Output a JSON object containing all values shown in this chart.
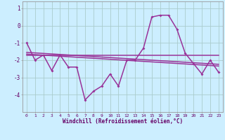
{
  "xlabel": "Windchill (Refroidissement éolien,°C)",
  "bg_color": "#cceeff",
  "line_color": "#993399",
  "grid_color": "#aacccc",
  "hours": [
    0,
    1,
    2,
    3,
    4,
    5,
    6,
    7,
    8,
    9,
    10,
    11,
    12,
    13,
    14,
    15,
    16,
    17,
    18,
    19,
    20,
    21,
    22,
    23
  ],
  "windchill": [
    -1.0,
    -2.0,
    -1.7,
    -2.6,
    -1.7,
    -2.4,
    -2.4,
    -4.3,
    -3.8,
    -3.5,
    -2.8,
    -3.5,
    -2.0,
    -2.0,
    -1.3,
    0.5,
    0.6,
    0.6,
    -0.2,
    -1.6,
    -2.2,
    -2.8,
    -2.0,
    -2.7
  ],
  "line_flat": [
    -1.7,
    -1.7,
    -1.7,
    -1.7,
    -1.7,
    -1.7,
    -1.7,
    -1.7,
    -1.7,
    -1.7,
    -1.7,
    -1.7,
    -1.7,
    -1.7,
    -1.7,
    -1.7,
    -1.7,
    -1.7,
    -1.7,
    -1.7,
    -1.7,
    -1.7,
    -1.7,
    -1.7
  ],
  "line_trend1": [
    -1.55,
    -1.58,
    -1.61,
    -1.64,
    -1.67,
    -1.7,
    -1.73,
    -1.76,
    -1.79,
    -1.82,
    -1.85,
    -1.88,
    -1.91,
    -1.94,
    -1.97,
    -2.0,
    -2.03,
    -2.06,
    -2.09,
    -2.12,
    -2.15,
    -2.18,
    -2.21,
    -2.24
  ],
  "line_trend2": [
    -1.65,
    -1.68,
    -1.71,
    -1.74,
    -1.77,
    -1.8,
    -1.83,
    -1.86,
    -1.89,
    -1.92,
    -1.95,
    -1.98,
    -2.01,
    -2.04,
    -2.07,
    -2.1,
    -2.13,
    -2.16,
    -2.19,
    -2.22,
    -2.25,
    -2.28,
    -2.31,
    -2.34
  ],
  "ylim": [
    -5.0,
    1.4
  ],
  "yticks": [
    -4,
    -3,
    -2,
    -1,
    0,
    1
  ],
  "xlim": [
    -0.5,
    23.5
  ]
}
